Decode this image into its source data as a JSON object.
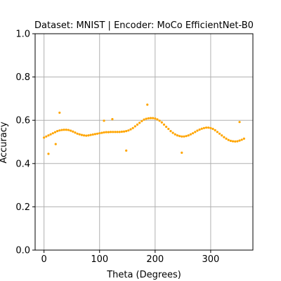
{
  "chart_data": {
    "type": "scatter",
    "title": "Dataset: MNIST | Encoder: MoCo EfficientNet-B0",
    "xlabel": "Theta (Degrees)",
    "ylabel": "Accuracy",
    "xlim": [
      -16,
      376
    ],
    "ylim": [
      0.0,
      1.0
    ],
    "xticks": [
      0,
      100,
      200,
      300
    ],
    "yticks": [
      0.0,
      0.2,
      0.4,
      0.6,
      0.8,
      1.0
    ],
    "xtick_labels": [
      "0",
      "100",
      "200",
      "300"
    ],
    "ytick_labels": [
      "0.0",
      "0.2",
      "0.4",
      "0.6",
      "0.8",
      "1.0"
    ],
    "grid": true,
    "marker_color": "#FFA500",
    "points": [
      {
        "x": 0,
        "y": 0.52
      },
      {
        "x": 4,
        "y": 0.525
      },
      {
        "x": 8,
        "y": 0.53
      },
      {
        "x": 12,
        "y": 0.535
      },
      {
        "x": 16,
        "y": 0.54
      },
      {
        "x": 20,
        "y": 0.545
      },
      {
        "x": 24,
        "y": 0.55
      },
      {
        "x": 28,
        "y": 0.553
      },
      {
        "x": 32,
        "y": 0.555
      },
      {
        "x": 36,
        "y": 0.556
      },
      {
        "x": 40,
        "y": 0.556
      },
      {
        "x": 44,
        "y": 0.555
      },
      {
        "x": 48,
        "y": 0.552
      },
      {
        "x": 52,
        "y": 0.548
      },
      {
        "x": 56,
        "y": 0.543
      },
      {
        "x": 60,
        "y": 0.538
      },
      {
        "x": 64,
        "y": 0.535
      },
      {
        "x": 68,
        "y": 0.532
      },
      {
        "x": 72,
        "y": 0.53
      },
      {
        "x": 76,
        "y": 0.529
      },
      {
        "x": 80,
        "y": 0.53
      },
      {
        "x": 84,
        "y": 0.532
      },
      {
        "x": 88,
        "y": 0.534
      },
      {
        "x": 92,
        "y": 0.536
      },
      {
        "x": 96,
        "y": 0.538
      },
      {
        "x": 100,
        "y": 0.54
      },
      {
        "x": 104,
        "y": 0.542
      },
      {
        "x": 108,
        "y": 0.544
      },
      {
        "x": 112,
        "y": 0.545
      },
      {
        "x": 116,
        "y": 0.545
      },
      {
        "x": 120,
        "y": 0.546
      },
      {
        "x": 124,
        "y": 0.546
      },
      {
        "x": 128,
        "y": 0.546
      },
      {
        "x": 132,
        "y": 0.546
      },
      {
        "x": 136,
        "y": 0.546
      },
      {
        "x": 140,
        "y": 0.547
      },
      {
        "x": 144,
        "y": 0.548
      },
      {
        "x": 148,
        "y": 0.55
      },
      {
        "x": 152,
        "y": 0.553
      },
      {
        "x": 156,
        "y": 0.558
      },
      {
        "x": 160,
        "y": 0.564
      },
      {
        "x": 164,
        "y": 0.572
      },
      {
        "x": 168,
        "y": 0.58
      },
      {
        "x": 172,
        "y": 0.588
      },
      {
        "x": 176,
        "y": 0.596
      },
      {
        "x": 180,
        "y": 0.603
      },
      {
        "x": 184,
        "y": 0.607
      },
      {
        "x": 188,
        "y": 0.609
      },
      {
        "x": 192,
        "y": 0.61
      },
      {
        "x": 196,
        "y": 0.61
      },
      {
        "x": 200,
        "y": 0.608
      },
      {
        "x": 204,
        "y": 0.604
      },
      {
        "x": 208,
        "y": 0.598
      },
      {
        "x": 212,
        "y": 0.59
      },
      {
        "x": 216,
        "y": 0.58
      },
      {
        "x": 220,
        "y": 0.57
      },
      {
        "x": 224,
        "y": 0.56
      },
      {
        "x": 228,
        "y": 0.55
      },
      {
        "x": 232,
        "y": 0.542
      },
      {
        "x": 236,
        "y": 0.535
      },
      {
        "x": 240,
        "y": 0.53
      },
      {
        "x": 244,
        "y": 0.527
      },
      {
        "x": 248,
        "y": 0.525
      },
      {
        "x": 252,
        "y": 0.525
      },
      {
        "x": 256,
        "y": 0.527
      },
      {
        "x": 260,
        "y": 0.53
      },
      {
        "x": 264,
        "y": 0.535
      },
      {
        "x": 268,
        "y": 0.54
      },
      {
        "x": 272,
        "y": 0.546
      },
      {
        "x": 276,
        "y": 0.552
      },
      {
        "x": 280,
        "y": 0.557
      },
      {
        "x": 284,
        "y": 0.561
      },
      {
        "x": 288,
        "y": 0.564
      },
      {
        "x": 292,
        "y": 0.566
      },
      {
        "x": 296,
        "y": 0.566
      },
      {
        "x": 300,
        "y": 0.564
      },
      {
        "x": 304,
        "y": 0.56
      },
      {
        "x": 308,
        "y": 0.554
      },
      {
        "x": 312,
        "y": 0.546
      },
      {
        "x": 316,
        "y": 0.538
      },
      {
        "x": 320,
        "y": 0.53
      },
      {
        "x": 324,
        "y": 0.522
      },
      {
        "x": 328,
        "y": 0.515
      },
      {
        "x": 332,
        "y": 0.509
      },
      {
        "x": 336,
        "y": 0.505
      },
      {
        "x": 340,
        "y": 0.503
      },
      {
        "x": 344,
        "y": 0.502
      },
      {
        "x": 348,
        "y": 0.503
      },
      {
        "x": 352,
        "y": 0.506
      },
      {
        "x": 356,
        "y": 0.51
      },
      {
        "x": 360,
        "y": 0.515
      },
      {
        "x": 8,
        "y": 0.445
      },
      {
        "x": 21,
        "y": 0.49
      },
      {
        "x": 28,
        "y": 0.635
      },
      {
        "x": 108,
        "y": 0.598
      },
      {
        "x": 123,
        "y": 0.605
      },
      {
        "x": 148,
        "y": 0.46
      },
      {
        "x": 186,
        "y": 0.672
      },
      {
        "x": 248,
        "y": 0.45
      },
      {
        "x": 352,
        "y": 0.592
      }
    ]
  }
}
